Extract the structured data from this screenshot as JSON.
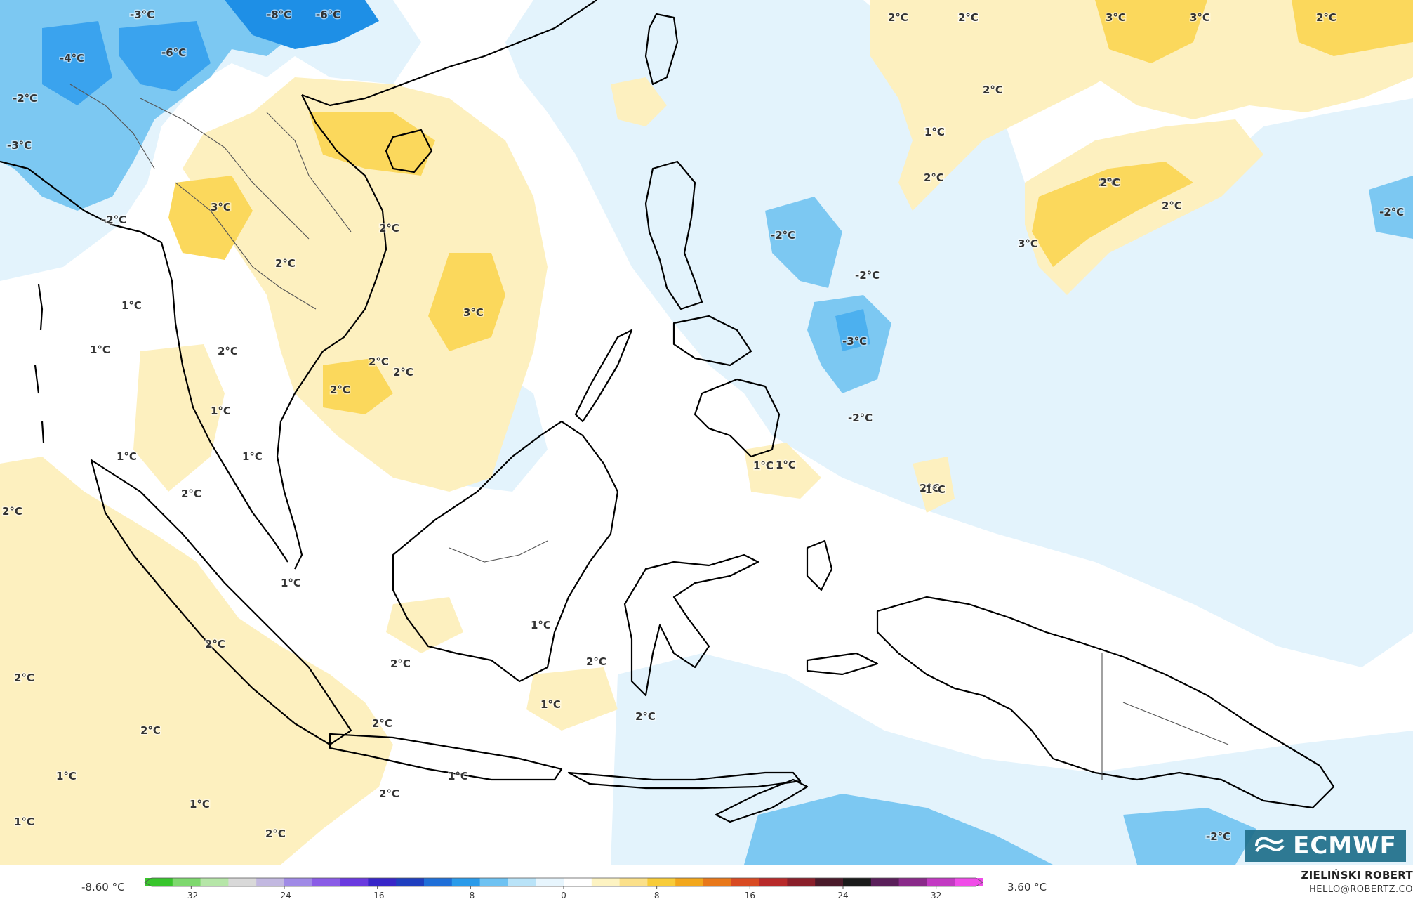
{
  "map": {
    "labels": [
      {
        "t": "-8°C"
      },
      {
        "t": "-6°C"
      },
      {
        "t": "-3°C"
      },
      {
        "t": "-6°C"
      },
      {
        "t": "-4°C"
      },
      {
        "t": "-2°C"
      },
      {
        "t": "-3°C"
      },
      {
        "t": "-2°C"
      },
      {
        "t": "3°C"
      },
      {
        "t": "2°C"
      },
      {
        "t": "2°C"
      },
      {
        "t": "2°C"
      },
      {
        "t": "3°C"
      },
      {
        "t": "2°C"
      },
      {
        "t": "2°C"
      },
      {
        "t": "1°C"
      },
      {
        "t": "1°C"
      },
      {
        "t": "2°C"
      },
      {
        "t": "1°C"
      },
      {
        "t": "1°C"
      },
      {
        "t": "1°C"
      },
      {
        "t": "2°C"
      },
      {
        "t": "2°C"
      },
      {
        "t": "2°C"
      },
      {
        "t": "1°C"
      },
      {
        "t": "2°C"
      },
      {
        "t": "2°C"
      },
      {
        "t": "1°C"
      },
      {
        "t": "2°C"
      },
      {
        "t": "2°C"
      },
      {
        "t": "1°C"
      },
      {
        "t": "1°C"
      },
      {
        "t": "1°C"
      },
      {
        "t": "2°C"
      },
      {
        "t": "2°C"
      },
      {
        "t": "1°C"
      },
      {
        "t": "1°C"
      },
      {
        "t": "2°C"
      },
      {
        "t": "2°C"
      },
      {
        "t": "1°C"
      },
      {
        "t": "2°C"
      },
      {
        "t": "2°C"
      },
      {
        "t": "2°C"
      },
      {
        "t": "2°C"
      },
      {
        "t": "1°C"
      },
      {
        "t": "2°C"
      },
      {
        "t": "3°C"
      },
      {
        "t": "3°C"
      },
      {
        "t": "2°C"
      },
      {
        "t": "2°C"
      },
      {
        "t": "2°C"
      },
      {
        "t": "1°C"
      },
      {
        "t": "2°C"
      },
      {
        "t": "2°C"
      },
      {
        "t": "3°C"
      },
      {
        "t": "-2°C"
      },
      {
        "t": "-2°C"
      },
      {
        "t": "-3°C"
      },
      {
        "t": "-2°C"
      },
      {
        "t": "1°C"
      },
      {
        "t": "1°C"
      },
      {
        "t": "-2°C"
      },
      {
        "t": "-2°C"
      }
    ]
  },
  "colorbar": {
    "min_label": "-8.60 °C",
    "max_label": "3.60 °C",
    "ticks": [
      "-32",
      "-24",
      "-16",
      "-8",
      "0",
      "8",
      "16",
      "24",
      "32"
    ],
    "tick_values": [
      -32,
      -24,
      -16,
      -8,
      0,
      8,
      16,
      24,
      32
    ],
    "range": [
      -36,
      36
    ],
    "colors": [
      "#38c52c",
      "#7ed86e",
      "#b6e6a8",
      "#d9d9d9",
      "#c2b8e0",
      "#a08ae6",
      "#8a5ce6",
      "#6a3adf",
      "#3826c8",
      "#1f3fbf",
      "#1f6fd8",
      "#2a9bea",
      "#6ec2f2",
      "#b9e3f8",
      "#e7f5fd",
      "#ffffff",
      "#fdf3c2",
      "#fbe08a",
      "#f8cc3a",
      "#f2a71c",
      "#e8781a",
      "#d84a22",
      "#b82a2a",
      "#8a1f2a",
      "#4a1a2a",
      "#1a1a1a",
      "#5a1f5a",
      "#8a2a8a",
      "#c23ac2",
      "#f04ce8"
    ]
  },
  "credit": {
    "name": "ZIELIŃSKI ROBERT",
    "email": "HELLO@ROBERTZ.CO"
  },
  "logo": {
    "text": "ECMWF"
  },
  "colors": {
    "cold_strong": "#1e8fe6",
    "cold_mid": "#7cc8f2",
    "cold_light": "#e3f3fc",
    "warm_light": "#fdf0bf",
    "warm_mid": "#fbd85c",
    "warm_strong": "#f7c51c",
    "coast": "#000000",
    "border": "#555555"
  }
}
